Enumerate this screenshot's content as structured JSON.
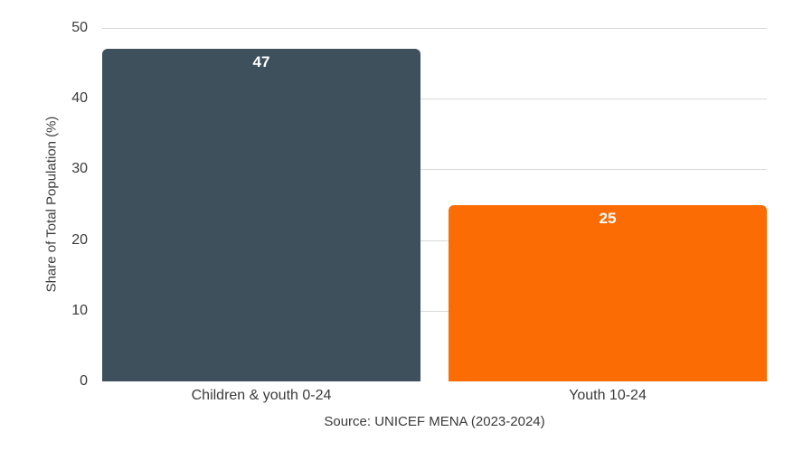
{
  "chart_data": {
    "type": "bar",
    "categories": [
      "Children & youth 0-24",
      "Youth 10-24"
    ],
    "values": [
      47,
      25
    ],
    "bar_colors": [
      "#3E505C",
      "#FB6C04"
    ],
    "value_label_color": "#ffffff",
    "title": "",
    "xlabel": "",
    "ylabel": "Share of Total Population (%)",
    "ylim": [
      0,
      50
    ],
    "yticks": [
      0,
      10,
      20,
      30,
      40,
      50
    ],
    "grid": "horizontal-only, no baseline, lines behind bars",
    "gridline_color": "#d9d9d9",
    "legend": "none",
    "source": "Source: UNICEF MENA (2023-2024)"
  }
}
